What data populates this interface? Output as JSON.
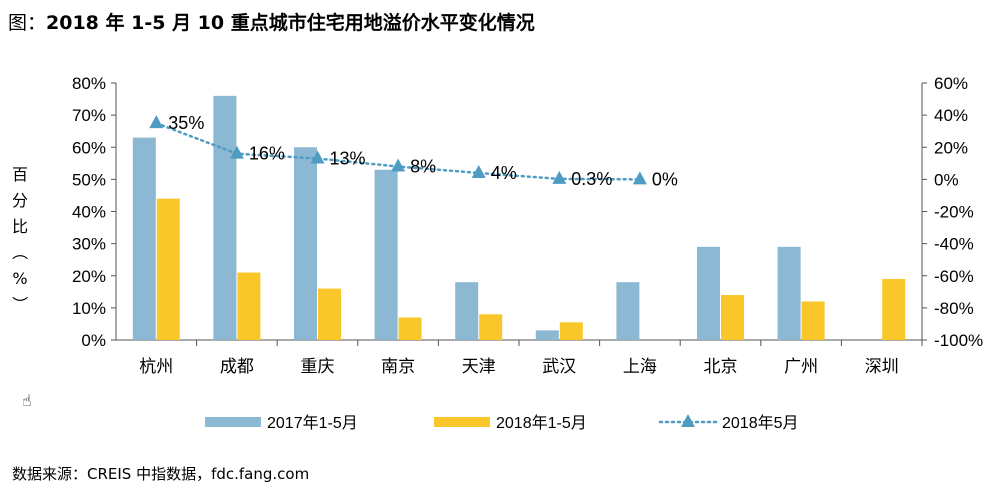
{
  "title": {
    "prefix": "图：",
    "main": "2018 年 1-5 月 10 重点城市住宅用地溢价水平变化情况"
  },
  "source": "数据来源：CREIS 中指数据，fdc.fang.com",
  "chart_data": {
    "type": "bar",
    "title": "图：2018 年 1-5 月 10 重点城市住宅用地溢价水平变化情况",
    "categories": [
      "杭州",
      "成都",
      "重庆",
      "南京",
      "天津",
      "武汉",
      "上海",
      "北京",
      "广州",
      "深圳"
    ],
    "ylabel": "百分比（%）",
    "ylim": [
      0,
      80
    ],
    "y_ticks": [
      "0%",
      "10%",
      "20%",
      "30%",
      "40%",
      "50%",
      "60%",
      "70%",
      "80%"
    ],
    "y2lim": [
      -100,
      60
    ],
    "y2_ticks": [
      "-100%",
      "-80%",
      "-60%",
      "-40%",
      "-20%",
      "0%",
      "20%",
      "40%",
      "60%"
    ],
    "series": [
      {
        "name": "2017年1-5月",
        "kind": "bar",
        "axis": "left",
        "color": "#8DB8D3",
        "values": [
          63,
          76,
          60,
          53,
          18,
          3,
          18,
          29,
          29,
          null
        ]
      },
      {
        "name": "2018年1-5月",
        "kind": "bar",
        "axis": "left",
        "color": "#F9C72A",
        "values": [
          44,
          21,
          16,
          7,
          8,
          5.5,
          null,
          14,
          12,
          19
        ]
      },
      {
        "name": "2018年5月",
        "kind": "line",
        "axis": "right",
        "color": "#4F9CC3",
        "values": [
          35,
          16,
          13,
          8,
          4,
          0.3,
          0,
          null,
          null,
          null
        ],
        "labels": [
          "35%",
          "16%",
          "13%",
          "8%",
          "4%",
          "0.3%",
          "0%",
          null,
          null,
          null
        ]
      }
    ],
    "legend_position": "bottom",
    "grid": false
  }
}
